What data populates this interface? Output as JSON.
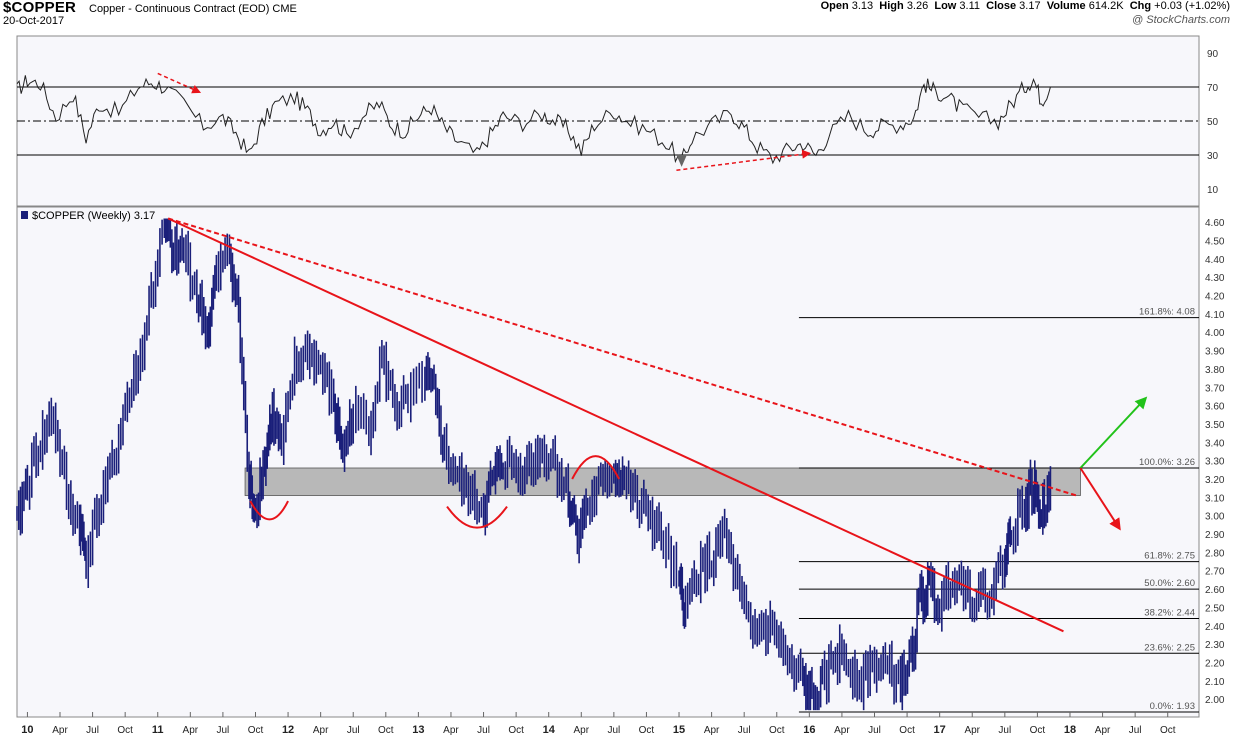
{
  "header": {
    "ticker": "$COPPER",
    "description": "Copper - Continuous Contract (EOD) CME",
    "date": "20-Oct-2017",
    "credit": "@ StockCharts.com",
    "ohlc": {
      "open_label": "Open",
      "open": "3.13",
      "high_label": "High",
      "high": "3.26",
      "low_label": "Low",
      "low": "3.11",
      "close_label": "Close",
      "close": "3.17",
      "volume_label": "Volume",
      "volume": "614.2K",
      "chg_label": "Chg",
      "chg": "+0.03 (+1.02%)"
    }
  },
  "colors": {
    "price": "#1a1f7a",
    "trend": "#e8141a",
    "zone": "#a8a8a8",
    "up_arrow": "#22c21a",
    "rsi": "#222222"
  },
  "chart_data": [
    {
      "type": "line",
      "panel": "rsi",
      "ylim": [
        0,
        100
      ],
      "ticks": [
        10,
        30,
        50,
        70,
        90
      ],
      "reference_lines": [
        30,
        50,
        70
      ],
      "x_range": [
        "2009-12-01",
        "2018-12-31"
      ],
      "series": [
        {
          "values": [
            [
              2009.92,
              68
            ],
            [
              2010.0,
              74
            ],
            [
              2010.1,
              72
            ],
            [
              2010.22,
              52
            ],
            [
              2010.35,
              66
            ],
            [
              2010.45,
              40
            ],
            [
              2010.55,
              60
            ],
            [
              2010.7,
              55
            ],
            [
              2010.85,
              70
            ],
            [
              2010.95,
              73
            ],
            [
              2011.05,
              70
            ],
            [
              2011.2,
              60
            ],
            [
              2011.35,
              47
            ],
            [
              2011.5,
              52
            ],
            [
              2011.6,
              43
            ],
            [
              2011.7,
              30
            ],
            [
              2011.8,
              48
            ],
            [
              2011.9,
              60
            ],
            [
              2012.05,
              64
            ],
            [
              2012.15,
              56
            ],
            [
              2012.25,
              44
            ],
            [
              2012.35,
              50
            ],
            [
              2012.45,
              42
            ],
            [
              2012.6,
              55
            ],
            [
              2012.7,
              60
            ],
            [
              2012.8,
              47
            ],
            [
              2012.9,
              44
            ],
            [
              2013.0,
              53
            ],
            [
              2013.1,
              58
            ],
            [
              2013.2,
              46
            ],
            [
              2013.3,
              38
            ],
            [
              2013.45,
              30
            ],
            [
              2013.55,
              42
            ],
            [
              2013.65,
              53
            ],
            [
              2013.8,
              49
            ],
            [
              2013.95,
              54
            ],
            [
              2014.05,
              50
            ],
            [
              2014.15,
              45
            ],
            [
              2014.25,
              32
            ],
            [
              2014.35,
              48
            ],
            [
              2014.5,
              56
            ],
            [
              2014.6,
              50
            ],
            [
              2014.75,
              45
            ],
            [
              2014.9,
              37
            ],
            [
              2015.02,
              26
            ],
            [
              2015.1,
              40
            ],
            [
              2015.25,
              48
            ],
            [
              2015.4,
              55
            ],
            [
              2015.5,
              46
            ],
            [
              2015.6,
              35
            ],
            [
              2015.72,
              28
            ],
            [
              2015.85,
              34
            ],
            [
              2015.95,
              37
            ],
            [
              2016.05,
              30
            ],
            [
              2016.15,
              42
            ],
            [
              2016.3,
              53
            ],
            [
              2016.45,
              44
            ],
            [
              2016.55,
              47
            ],
            [
              2016.7,
              48
            ],
            [
              2016.8,
              52
            ],
            [
              2016.88,
              72
            ],
            [
              2016.95,
              68
            ],
            [
              2017.05,
              65
            ],
            [
              2017.15,
              58
            ],
            [
              2017.3,
              52
            ],
            [
              2017.45,
              50
            ],
            [
              2017.55,
              60
            ],
            [
              2017.65,
              70
            ],
            [
              2017.72,
              75
            ],
            [
              2017.78,
              62
            ],
            [
              2017.85,
              70
            ]
          ]
        }
      ]
    },
    {
      "type": "line",
      "panel": "price",
      "title": "$COPPER (Weekly) 3.17",
      "ylim": [
        1.93,
        4.65
      ],
      "yticks": [
        2.0,
        2.1,
        2.2,
        2.3,
        2.4,
        2.5,
        2.6,
        2.7,
        2.8,
        2.9,
        3.0,
        3.1,
        3.2,
        3.3,
        3.4,
        3.5,
        3.6,
        3.7,
        3.8,
        3.9,
        4.0,
        4.1,
        4.2,
        4.3,
        4.4,
        4.5,
        4.6
      ],
      "x_range": [
        "2009-12-01",
        "2018-12-31"
      ],
      "xticks": [
        {
          "t": 2010.0,
          "label": "10",
          "major": true
        },
        {
          "t": 2010.25,
          "label": "Apr"
        },
        {
          "t": 2010.5,
          "label": "Jul"
        },
        {
          "t": 2010.75,
          "label": "Oct"
        },
        {
          "t": 2011.0,
          "label": "11",
          "major": true
        },
        {
          "t": 2011.25,
          "label": "Apr"
        },
        {
          "t": 2011.5,
          "label": "Jul"
        },
        {
          "t": 2011.75,
          "label": "Oct"
        },
        {
          "t": 2012.0,
          "label": "12",
          "major": true
        },
        {
          "t": 2012.25,
          "label": "Apr"
        },
        {
          "t": 2012.5,
          "label": "Jul"
        },
        {
          "t": 2012.75,
          "label": "Oct"
        },
        {
          "t": 2013.0,
          "label": "13",
          "major": true
        },
        {
          "t": 2013.25,
          "label": "Apr"
        },
        {
          "t": 2013.5,
          "label": "Jul"
        },
        {
          "t": 2013.75,
          "label": "Oct"
        },
        {
          "t": 2014.0,
          "label": "14",
          "major": true
        },
        {
          "t": 2014.25,
          "label": "Apr"
        },
        {
          "t": 2014.5,
          "label": "Jul"
        },
        {
          "t": 2014.75,
          "label": "Oct"
        },
        {
          "t": 2015.0,
          "label": "15",
          "major": true
        },
        {
          "t": 2015.25,
          "label": "Apr"
        },
        {
          "t": 2015.5,
          "label": "Jul"
        },
        {
          "t": 2015.75,
          "label": "Oct"
        },
        {
          "t": 2016.0,
          "label": "16",
          "major": true
        },
        {
          "t": 2016.25,
          "label": "Apr"
        },
        {
          "t": 2016.5,
          "label": "Jul"
        },
        {
          "t": 2016.75,
          "label": "Oct"
        },
        {
          "t": 2017.0,
          "label": "17",
          "major": true
        },
        {
          "t": 2017.25,
          "label": "Apr"
        },
        {
          "t": 2017.5,
          "label": "Jul"
        },
        {
          "t": 2017.75,
          "label": "Oct"
        },
        {
          "t": 2018.0,
          "label": "18",
          "major": true
        },
        {
          "t": 2018.25,
          "label": "Apr"
        },
        {
          "t": 2018.5,
          "label": "Jul"
        },
        {
          "t": 2018.75,
          "label": "Oct"
        }
      ],
      "series": [
        {
          "values": [
            [
              2009.92,
              2.95
            ],
            [
              2010.0,
              3.2
            ],
            [
              2010.1,
              3.4
            ],
            [
              2010.2,
              3.55
            ],
            [
              2010.3,
              3.1
            ],
            [
              2010.4,
              2.95
            ],
            [
              2010.45,
              2.78
            ],
            [
              2010.55,
              3.05
            ],
            [
              2010.65,
              3.25
            ],
            [
              2010.75,
              3.6
            ],
            [
              2010.85,
              3.8
            ],
            [
              2010.95,
              4.2
            ],
            [
              2011.05,
              4.6
            ],
            [
              2011.12,
              4.4
            ],
            [
              2011.2,
              4.45
            ],
            [
              2011.3,
              4.2
            ],
            [
              2011.38,
              4.0
            ],
            [
              2011.45,
              4.3
            ],
            [
              2011.55,
              4.45
            ],
            [
              2011.62,
              4.1
            ],
            [
              2011.7,
              3.15
            ],
            [
              2011.75,
              3.05
            ],
            [
              2011.82,
              3.3
            ],
            [
              2011.88,
              3.55
            ],
            [
              2011.95,
              3.35
            ],
            [
              2012.05,
              3.8
            ],
            [
              2012.15,
              3.9
            ],
            [
              2012.25,
              3.8
            ],
            [
              2012.35,
              3.6
            ],
            [
              2012.42,
              3.35
            ],
            [
              2012.5,
              3.55
            ],
            [
              2012.62,
              3.5
            ],
            [
              2012.72,
              3.85
            ],
            [
              2012.82,
              3.6
            ],
            [
              2012.92,
              3.6
            ],
            [
              2013.05,
              3.75
            ],
            [
              2013.12,
              3.65
            ],
            [
              2013.2,
              3.35
            ],
            [
              2013.3,
              3.2
            ],
            [
              2013.4,
              3.1
            ],
            [
              2013.5,
              3.05
            ],
            [
              2013.58,
              3.2
            ],
            [
              2013.65,
              3.3
            ],
            [
              2013.75,
              3.25
            ],
            [
              2013.85,
              3.28
            ],
            [
              2013.95,
              3.35
            ],
            [
              2014.05,
              3.3
            ],
            [
              2014.15,
              3.1
            ],
            [
              2014.22,
              2.92
            ],
            [
              2014.3,
              3.05
            ],
            [
              2014.4,
              3.15
            ],
            [
              2014.5,
              3.25
            ],
            [
              2014.58,
              3.2
            ],
            [
              2014.68,
              3.05
            ],
            [
              2014.78,
              3.0
            ],
            [
              2014.88,
              2.85
            ],
            [
              2015.0,
              2.6
            ],
            [
              2015.05,
              2.5
            ],
            [
              2015.15,
              2.7
            ],
            [
              2015.25,
              2.75
            ],
            [
              2015.35,
              2.9
            ],
            [
              2015.45,
              2.6
            ],
            [
              2015.55,
              2.35
            ],
            [
              2015.65,
              2.4
            ],
            [
              2015.75,
              2.35
            ],
            [
              2015.85,
              2.15
            ],
            [
              2015.95,
              2.1
            ],
            [
              2016.02,
              1.98
            ],
            [
              2016.1,
              2.05
            ],
            [
              2016.2,
              2.25
            ],
            [
              2016.3,
              2.2
            ],
            [
              2016.4,
              2.1
            ],
            [
              2016.5,
              2.2
            ],
            [
              2016.6,
              2.15
            ],
            [
              2016.7,
              2.1
            ],
            [
              2016.78,
              2.2
            ],
            [
              2016.85,
              2.55
            ],
            [
              2016.92,
              2.6
            ],
            [
              2017.0,
              2.5
            ],
            [
              2017.1,
              2.7
            ],
            [
              2017.2,
              2.6
            ],
            [
              2017.3,
              2.55
            ],
            [
              2017.4,
              2.6
            ],
            [
              2017.5,
              2.75
            ],
            [
              2017.55,
              2.95
            ],
            [
              2017.65,
              3.05
            ],
            [
              2017.72,
              3.15
            ],
            [
              2017.78,
              3.0
            ],
            [
              2017.85,
              3.17
            ]
          ]
        }
      ],
      "fibonacci": [
        {
          "label": "161.8%: 4.08",
          "value": 4.08
        },
        {
          "label": "100.0%: 3.26",
          "value": 3.26
        },
        {
          "label": "61.8%: 2.75",
          "value": 2.75
        },
        {
          "label": "50.0%: 2.60",
          "value": 2.6
        },
        {
          "label": "38.2%: 2.44",
          "value": 2.44
        },
        {
          "label": "23.6%: 2.25",
          "value": 2.25
        },
        {
          "label": "0.0%: 1.93",
          "value": 1.93
        }
      ],
      "zone": {
        "low": 3.11,
        "high": 3.26,
        "from": 2011.67,
        "to": 2018.08
      },
      "trendlines": [
        {
          "style": "solid",
          "from": [
            2011.08,
            4.62
          ],
          "to": [
            2017.95,
            2.37
          ]
        },
        {
          "style": "dashed",
          "from": [
            2011.08,
            4.62
          ],
          "to": [
            2018.05,
            3.11
          ]
        }
      ]
    }
  ]
}
